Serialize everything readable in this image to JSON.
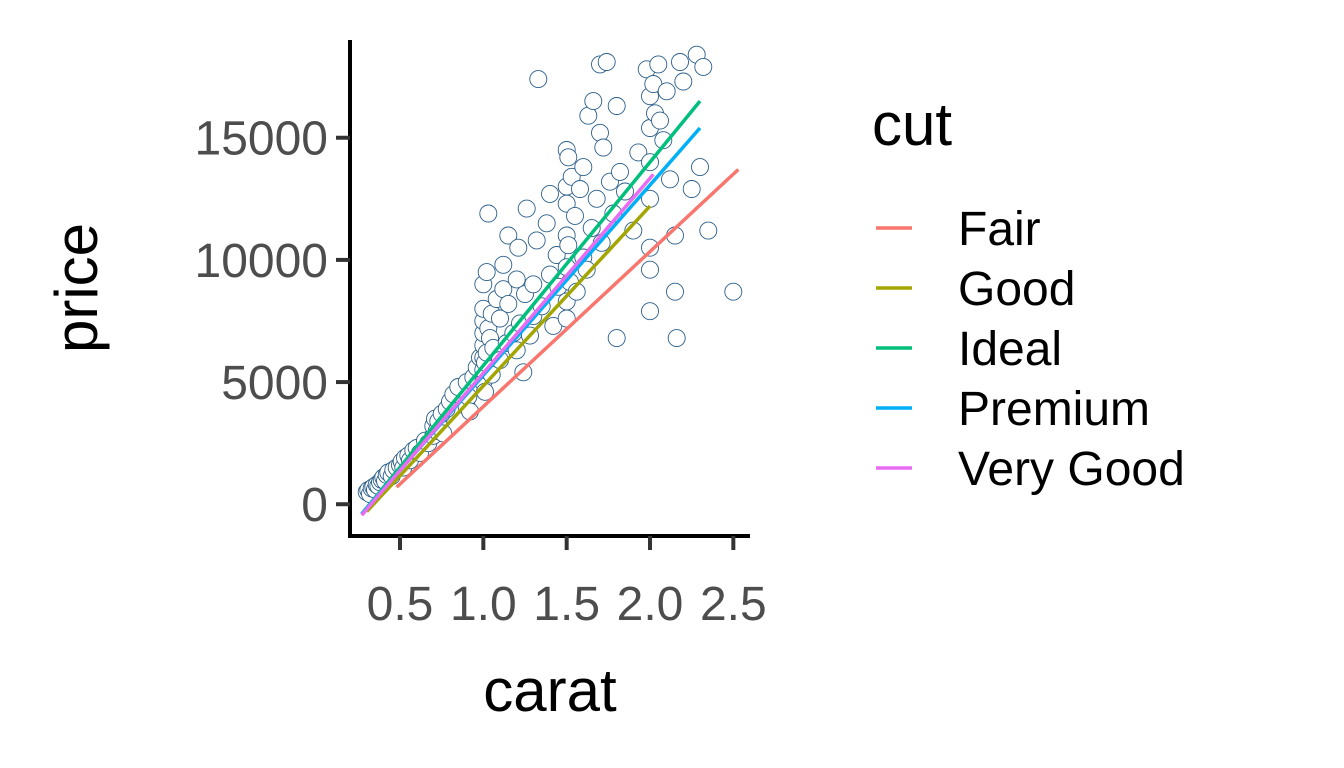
{
  "chart_data": {
    "type": "scatter",
    "title": "",
    "xlabel": "carat",
    "ylabel": "price",
    "xlim": [
      0.2,
      2.6
    ],
    "ylim": [
      -1300,
      19000
    ],
    "x_ticks": [
      0.5,
      1.0,
      1.5,
      2.0,
      2.5
    ],
    "x_tick_labels": [
      "0.5",
      "1.0",
      "1.5",
      "2.0",
      "2.5"
    ],
    "y_ticks": [
      0,
      5000,
      10000,
      15000
    ],
    "y_tick_labels": [
      "0",
      "5000",
      "10000",
      "15000"
    ],
    "grid": false,
    "point_color": "#2c5f8a",
    "legend": {
      "title": "cut",
      "placement": "right",
      "entries": [
        {
          "name": "Fair",
          "color": "#F8766D"
        },
        {
          "name": "Good",
          "color": "#A3A500"
        },
        {
          "name": "Ideal",
          "color": "#00BF7D"
        },
        {
          "name": "Premium",
          "color": "#00B0F6"
        },
        {
          "name": "Very Good",
          "color": "#E76BF3"
        }
      ]
    },
    "points": [
      [
        0.3,
        500
      ],
      [
        0.31,
        580
      ],
      [
        0.32,
        420
      ],
      [
        0.33,
        650
      ],
      [
        0.34,
        700
      ],
      [
        0.35,
        600
      ],
      [
        0.36,
        800
      ],
      [
        0.37,
        750
      ],
      [
        0.38,
        900
      ],
      [
        0.39,
        1000
      ],
      [
        0.4,
        1100
      ],
      [
        0.41,
        950
      ],
      [
        0.42,
        1200
      ],
      [
        0.43,
        1300
      ],
      [
        0.45,
        1150
      ],
      [
        0.46,
        1400
      ],
      [
        0.48,
        1500
      ],
      [
        0.5,
        1600
      ],
      [
        0.51,
        1750
      ],
      [
        0.52,
        1500
      ],
      [
        0.53,
        1900
      ],
      [
        0.55,
        2000
      ],
      [
        0.56,
        1800
      ],
      [
        0.58,
        2200
      ],
      [
        0.6,
        2300
      ],
      [
        0.62,
        2100
      ],
      [
        0.65,
        2600
      ],
      [
        0.67,
        2500
      ],
      [
        0.7,
        2800
      ],
      [
        0.7,
        3200
      ],
      [
        0.71,
        3500
      ],
      [
        0.72,
        3000
      ],
      [
        0.73,
        3400
      ],
      [
        0.75,
        3700
      ],
      [
        0.76,
        2900
      ],
      [
        0.78,
        3900
      ],
      [
        0.8,
        4200
      ],
      [
        0.82,
        4500
      ],
      [
        0.85,
        4800
      ],
      [
        0.9,
        4000
      ],
      [
        0.9,
        5000
      ],
      [
        0.91,
        4400
      ],
      [
        0.92,
        3800
      ],
      [
        0.94,
        5200
      ],
      [
        0.96,
        5600
      ],
      [
        0.98,
        6000
      ],
      [
        1.0,
        5000
      ],
      [
        1.0,
        5500
      ],
      [
        1.0,
        6000
      ],
      [
        1.0,
        6500
      ],
      [
        1.0,
        7000
      ],
      [
        1.0,
        7500
      ],
      [
        1.0,
        8000
      ],
      [
        1.0,
        9000
      ],
      [
        1.01,
        4600
      ],
      [
        1.01,
        5800
      ],
      [
        1.02,
        6200
      ],
      [
        1.02,
        9500
      ],
      [
        1.03,
        7200
      ],
      [
        1.03,
        11900
      ],
      [
        1.04,
        6800
      ],
      [
        1.05,
        7800
      ],
      [
        1.05,
        5300
      ],
      [
        1.06,
        6400
      ],
      [
        1.08,
        8400
      ],
      [
        1.1,
        5900
      ],
      [
        1.1,
        7600
      ],
      [
        1.12,
        8800
      ],
      [
        1.12,
        9800
      ],
      [
        1.14,
        6600
      ],
      [
        1.15,
        11000
      ],
      [
        1.15,
        8200
      ],
      [
        1.18,
        7000
      ],
      [
        1.2,
        9200
      ],
      [
        1.2,
        6300
      ],
      [
        1.21,
        10500
      ],
      [
        1.22,
        7400
      ],
      [
        1.24,
        5400
      ],
      [
        1.25,
        8600
      ],
      [
        1.26,
        12100
      ],
      [
        1.28,
        6900
      ],
      [
        1.3,
        9000
      ],
      [
        1.3,
        7700
      ],
      [
        1.32,
        10800
      ],
      [
        1.33,
        17400
      ],
      [
        1.35,
        8100
      ],
      [
        1.38,
        11500
      ],
      [
        1.4,
        9400
      ],
      [
        1.4,
        12700
      ],
      [
        1.42,
        7300
      ],
      [
        1.44,
        10200
      ],
      [
        1.45,
        8900
      ],
      [
        1.5,
        14500
      ],
      [
        1.5,
        13000
      ],
      [
        1.5,
        11000
      ],
      [
        1.5,
        9700
      ],
      [
        1.5,
        8300
      ],
      [
        1.5,
        7600
      ],
      [
        1.5,
        12300
      ],
      [
        1.51,
        14200
      ],
      [
        1.51,
        10600
      ],
      [
        1.52,
        9100
      ],
      [
        1.53,
        13400
      ],
      [
        1.55,
        11800
      ],
      [
        1.56,
        8700
      ],
      [
        1.58,
        12900
      ],
      [
        1.6,
        10100
      ],
      [
        1.6,
        13800
      ],
      [
        1.62,
        9600
      ],
      [
        1.63,
        15900
      ],
      [
        1.65,
        11300
      ],
      [
        1.66,
        16500
      ],
      [
        1.68,
        12500
      ],
      [
        1.7,
        18000
      ],
      [
        1.7,
        15200
      ],
      [
        1.71,
        10700
      ],
      [
        1.72,
        14600
      ],
      [
        1.74,
        18100
      ],
      [
        1.76,
        13200
      ],
      [
        1.78,
        11900
      ],
      [
        1.8,
        16300
      ],
      [
        1.8,
        6800
      ],
      [
        1.82,
        13600
      ],
      [
        1.85,
        12800
      ],
      [
        1.9,
        11200
      ],
      [
        1.93,
        14400
      ],
      [
        1.98,
        17800
      ],
      [
        2.0,
        16700
      ],
      [
        2.0,
        15400
      ],
      [
        2.0,
        14000
      ],
      [
        2.0,
        12500
      ],
      [
        2.0,
        10500
      ],
      [
        2.0,
        9600
      ],
      [
        2.0,
        7900
      ],
      [
        2.02,
        17200
      ],
      [
        2.03,
        16000
      ],
      [
        2.05,
        18000
      ],
      [
        2.06,
        15700
      ],
      [
        2.08,
        14900
      ],
      [
        2.1,
        16900
      ],
      [
        2.12,
        13300
      ],
      [
        2.15,
        11000
      ],
      [
        2.15,
        8700
      ],
      [
        2.16,
        6800
      ],
      [
        2.18,
        18100
      ],
      [
        2.2,
        17300
      ],
      [
        2.25,
        12900
      ],
      [
        2.28,
        18400
      ],
      [
        2.3,
        13800
      ],
      [
        2.32,
        17900
      ],
      [
        2.35,
        11200
      ],
      [
        2.5,
        8700
      ]
    ],
    "series": [
      {
        "name": "Fair",
        "color": "#F8766D",
        "x": [
          0.48,
          2.53
        ],
        "y": [
          700,
          13700
        ]
      },
      {
        "name": "Good",
        "color": "#A3A500",
        "x": [
          0.3,
          2.0
        ],
        "y": [
          -300,
          12200
        ]
      },
      {
        "name": "Ideal",
        "color": "#00BF7D",
        "x": [
          0.27,
          2.3
        ],
        "y": [
          -400,
          16500
        ]
      },
      {
        "name": "Premium",
        "color": "#00B0F6",
        "x": [
          0.27,
          2.3
        ],
        "y": [
          -400,
          15400
        ]
      },
      {
        "name": "Very Good",
        "color": "#E76BF3",
        "x": [
          0.27,
          2.02
        ],
        "y": [
          -450,
          13500
        ]
      }
    ]
  }
}
